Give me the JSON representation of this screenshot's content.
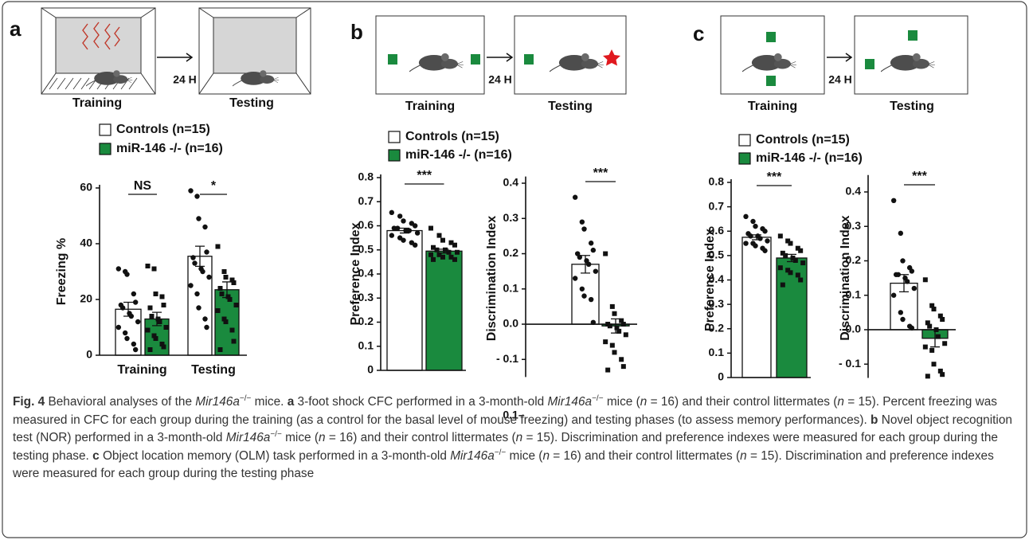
{
  "panels": [
    {
      "letter": "a",
      "training": "Training",
      "testing": "Testing",
      "interval": "24 H"
    },
    {
      "letter": "b",
      "training": "Training",
      "testing": "Testing",
      "interval": "24 H"
    },
    {
      "letter": "c",
      "training": "Training",
      "testing": "Testing",
      "interval": "24 H"
    }
  ],
  "chart_data": [
    {
      "type": "bar",
      "ylabel": "Freezing %",
      "categories": [
        "Training",
        "Testing"
      ],
      "significance": [
        "NS",
        "*"
      ],
      "ylim": [
        0,
        60
      ],
      "yticks": [
        0,
        20,
        40,
        60
      ],
      "series": [
        {
          "name": "Controls (n=15)",
          "color": "#ffffff",
          "marker": "circle",
          "values": [
            16.5,
            35.5
          ],
          "errors": [
            2.5,
            3.6
          ],
          "points": [
            [
              31,
              30,
              29,
              22,
              19,
              18,
              17,
              15,
              14,
              12,
              10,
              8,
              6,
              4,
              2
            ],
            [
              59,
              57,
              49,
              46,
              37,
              35,
              33,
              31,
              30,
              28,
              25,
              22,
              17,
              13,
              10
            ]
          ]
        },
        {
          "name": "miR-146 -/- (n=16)",
          "color": "#1a8a3e",
          "marker": "square",
          "values": [
            13,
            23.5
          ],
          "errors": [
            2.4,
            2.8
          ],
          "points": [
            [
              32,
              31,
              22,
              21,
              18,
              17,
              14,
              13,
              12,
              10,
              9,
              7,
              6,
              4,
              3,
              2
            ],
            [
              39,
              30,
              28,
              27,
              26,
              24,
              22,
              21,
              20,
              18,
              16,
              13,
              12,
              9,
              5,
              2
            ]
          ]
        }
      ]
    },
    {
      "type": "bar",
      "ylabel": "Preference Index",
      "categories": [
        null
      ],
      "significance": [
        "***"
      ],
      "ylim": [
        0,
        0.8
      ],
      "yticks": [
        {
          "value": 0,
          "label": "0"
        },
        0.1,
        0.2,
        0.3,
        0.4,
        0.5,
        0.6,
        0.7,
        0.8
      ],
      "series": [
        {
          "name": "Controls (n=15)",
          "color": "#ffffff",
          "marker": "circle",
          "values": [
            0.58
          ],
          "errors": [
            0.01
          ],
          "points": [
            [
              0.655,
              0.64,
              0.62,
              0.61,
              0.6,
              0.59,
              0.59,
              0.58,
              0.58,
              0.57,
              0.56,
              0.55,
              0.54,
              0.53,
              0.52
            ]
          ]
        },
        {
          "name": "miR-146 -/- (n=16)",
          "color": "#1a8a3e",
          "marker": "square",
          "values": [
            0.495
          ],
          "errors": [
            0.008
          ],
          "points": [
            [
              0.59,
              0.56,
              0.54,
              0.53,
              0.52,
              0.51,
              0.5,
              0.5,
              0.49,
              0.49,
              0.48,
              0.48,
              0.47,
              0.47,
              0.46,
              0.46
            ]
          ]
        }
      ]
    },
    {
      "type": "bar",
      "ylabel": "Discrimination Index",
      "categories": [
        null
      ],
      "significance": [
        "***"
      ],
      "footnote": "0.1–",
      "ylim": [
        -0.15,
        0.41
      ],
      "yticks": [
        {
          "value": -0.1,
          "label": "- 0.1"
        },
        {
          "value": 0,
          "label": "0.0"
        },
        0.1,
        0.2,
        0.3,
        0.4
      ],
      "series": [
        {
          "color": "#ffffff",
          "marker": "circle",
          "values": [
            0.17
          ],
          "errors": [
            0.025
          ],
          "points": [
            [
              0.36,
              0.29,
              0.27,
              0.23,
              0.21,
              0.2,
              0.19,
              0.18,
              0.17,
              0.15,
              0.13,
              0.1,
              0.08,
              0.07,
              0.005
            ]
          ]
        },
        {
          "color": "#1a8a3e",
          "marker": "square",
          "values": [
            -0.005
          ],
          "errors": [
            0.02
          ],
          "points": [
            [
              0.2,
              0.05,
              0.03,
              0.01,
              0,
              0,
              -0.005,
              -0.01,
              -0.02,
              -0.03,
              -0.05,
              -0.06,
              -0.08,
              -0.1,
              -0.12,
              -0.13
            ]
          ]
        }
      ]
    },
    {
      "type": "bar",
      "ylabel": "Preference Index",
      "categories": [
        null
      ],
      "significance": [
        "***"
      ],
      "ylim": [
        0,
        0.8
      ],
      "yticks": [
        {
          "value": 0,
          "label": "0"
        },
        0.1,
        0.2,
        0.3,
        0.4,
        0.5,
        0.6,
        0.7,
        0.8
      ],
      "series": [
        {
          "name": "Controls (n=15)",
          "color": "#ffffff",
          "marker": "circle",
          "values": [
            0.575
          ],
          "errors": [
            0.01
          ],
          "points": [
            [
              0.66,
              0.64,
              0.62,
              0.61,
              0.6,
              0.59,
              0.58,
              0.58,
              0.57,
              0.56,
              0.55,
              0.55,
              0.54,
              0.53,
              0.52
            ]
          ]
        },
        {
          "name": "miR-146 -/- (n=16)",
          "color": "#1a8a3e",
          "marker": "square",
          "values": [
            0.49
          ],
          "errors": [
            0.015
          ],
          "points": [
            [
              0.58,
              0.56,
              0.55,
              0.53,
              0.52,
              0.51,
              0.5,
              0.49,
              0.48,
              0.47,
              0.45,
              0.44,
              0.43,
              0.42,
              0.4,
              0.38
            ]
          ]
        }
      ]
    },
    {
      "type": "bar",
      "ylabel": "Discrimination Index",
      "categories": [
        null
      ],
      "significance": [
        "***"
      ],
      "ylim": [
        -0.14,
        0.44
      ],
      "yticks": [
        {
          "value": -0.1,
          "label": "- 0.1"
        },
        {
          "value": 0,
          "label": "0.0"
        },
        0.1,
        0.2,
        0.3,
        0.4
      ],
      "series": [
        {
          "color": "#ffffff",
          "marker": "circle",
          "values": [
            0.135
          ],
          "errors": [
            0.025
          ],
          "points": [
            [
              0.375,
              0.28,
              0.2,
              0.18,
              0.17,
              0.16,
              0.16,
              0.15,
              0.14,
              0.12,
              0.1,
              0.05,
              0.03,
              0.01,
              0.005
            ]
          ]
        },
        {
          "color": "#1a8a3e",
          "marker": "square",
          "values": [
            -0.025
          ],
          "errors": [
            0.025
          ],
          "points": [
            [
              0.145,
              0.07,
              0.06,
              0.04,
              0.03,
              0.02,
              0.01,
              0,
              -0.02,
              -0.04,
              -0.05,
              -0.06,
              -0.1,
              -0.12,
              -0.13,
              -0.135
            ]
          ]
        }
      ]
    }
  ],
  "caption": [
    {
      "text": "Fig. 4",
      "style": "bold"
    },
    " Behavioral analyses of the ",
    {
      "text": "Mir146a",
      "style": "italic"
    },
    {
      "text": "−/−",
      "style": "sup"
    },
    " mice. ",
    {
      "text": "a",
      "style": "bold"
    },
    " 3-foot shock CFC performed in a 3-month-old ",
    {
      "text": "Mir146a",
      "style": "italic"
    },
    {
      "text": "−/−",
      "style": "sup"
    },
    " mice (",
    {
      "text": "n",
      "style": "italic"
    },
    " = 16) and their control littermates (",
    {
      "text": "n",
      "style": "italic"
    },
    " = 15). Percent freezing was measured in CFC for each group during the training (as a control for the basal level of mouse freezing) and testing phases (to assess memory performances). ",
    {
      "text": "b",
      "style": "bold"
    },
    " Novel object recognition test (NOR) performed in a 3-month-old ",
    {
      "text": "Mir146a",
      "style": "italic"
    },
    {
      "text": "−/−",
      "style": "sup"
    },
    " mice (",
    {
      "text": "n",
      "style": "italic"
    },
    " = 16) and their control littermates (",
    {
      "text": "n",
      "style": "italic"
    },
    " = 15). Discrimination and preference indexes were measured for each group during the testing phase. ",
    {
      "text": "c",
      "style": "bold"
    },
    " Object location memory (OLM) task performed in a 3-month-old ",
    {
      "text": "Mir146a",
      "style": "italic"
    },
    {
      "text": "−/−",
      "style": "sup"
    },
    " mice (",
    {
      "text": "n",
      "style": "italic"
    },
    " = 16) and their control littermates (",
    {
      "text": "n",
      "style": "italic"
    },
    " = 15). Discrimination and preference indexes were measured for each group during the testing phase"
  ]
}
